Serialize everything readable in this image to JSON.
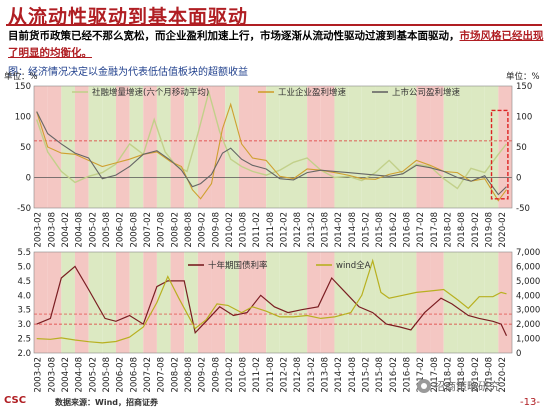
{
  "header": {
    "title": "从流动性驱动到基本面驱动",
    "summary_plain": "目前货币政策已经不那么宽松，而企业盈利加速上行，市场逐渐从流动性驱动过渡到基本面驱动，",
    "summary_highlight": "市场风格已经出现了明显的均衡化。",
    "caption": "图：经济情况决定以金融为代表低估值板块的超额收益"
  },
  "colors": {
    "shade_red": "#f4c7c3",
    "shade_green": "#dce9c2",
    "series_m2": "#c2d08a",
    "series_industrial": "#cfa030",
    "series_listed": "#666666",
    "series_bond": "#7a1e22",
    "series_wind": "#b8b020",
    "ref_line": "#d33",
    "box": "#d22"
  },
  "chart_data": [
    {
      "type": "line",
      "y_unit_left": "单位：%",
      "y_unit_right": "单位：%",
      "ylim_left": [
        -50,
        150
      ],
      "ylim_right": [
        -50,
        150
      ],
      "yticks_left": [
        -50,
        0,
        50,
        100,
        150
      ],
      "yticks_right": [
        -50,
        0,
        50,
        100,
        150
      ],
      "x_tick_labels": [
        "2003-02",
        "2003-08",
        "2004-02",
        "2004-08",
        "2005-02",
        "2005-08",
        "2006-02",
        "2006-08",
        "2007-02",
        "2007-08",
        "2008-02",
        "2008-08",
        "2009-02",
        "2009-08",
        "2010-02",
        "2010-08",
        "2011-02",
        "2011-08",
        "2012-02",
        "2012-08",
        "2013-02",
        "2013-08",
        "2014-02",
        "2014-08",
        "2015-02",
        "2015-08",
        "2016-02",
        "2016-08",
        "2017-02",
        "2017-08",
        "2018-02",
        "2018-08",
        "2019-02",
        "2019-08",
        "2020-02"
      ],
      "regimes": [
        "red",
        "red",
        "green",
        "red",
        "green",
        "green",
        "red",
        "green",
        "red",
        "green",
        "red",
        "green",
        "red",
        "red",
        "green",
        "red",
        "red",
        "green",
        "green",
        "green",
        "red",
        "red",
        "green",
        "green",
        "green",
        "green",
        "green",
        "green",
        "red",
        "red",
        "green",
        "green",
        "green",
        "green",
        "red"
      ],
      "reference_lines": [
        0,
        60
      ],
      "series": [
        {
          "name": "社融增量增速(六个月移动平均)",
          "points": [
            [
              2003.1,
              95
            ],
            [
              2003.5,
              42
            ],
            [
              2004.0,
              10
            ],
            [
              2004.5,
              -8
            ],
            [
              2005.0,
              2
            ],
            [
              2005.5,
              8
            ],
            [
              2006.0,
              22
            ],
            [
              2006.5,
              55
            ],
            [
              2007.0,
              38
            ],
            [
              2007.4,
              95
            ],
            [
              2007.8,
              42
            ],
            [
              2008.2,
              20
            ],
            [
              2008.6,
              10
            ],
            [
              2009.0,
              72
            ],
            [
              2009.4,
              140
            ],
            [
              2009.8,
              75
            ],
            [
              2010.2,
              30
            ],
            [
              2010.6,
              18
            ],
            [
              2011.0,
              10
            ],
            [
              2011.5,
              4
            ],
            [
              2012.0,
              12
            ],
            [
              2012.5,
              25
            ],
            [
              2013.0,
              32
            ],
            [
              2013.5,
              12
            ],
            [
              2014.0,
              0
            ],
            [
              2014.5,
              2
            ],
            [
              2015.0,
              -5
            ],
            [
              2015.5,
              8
            ],
            [
              2016.0,
              28
            ],
            [
              2016.5,
              6
            ],
            [
              2017.0,
              22
            ],
            [
              2017.5,
              18
            ],
            [
              2018.0,
              -2
            ],
            [
              2018.5,
              -18
            ],
            [
              2019.0,
              15
            ],
            [
              2019.5,
              8
            ],
            [
              2020.0,
              38
            ],
            [
              2020.3,
              55
            ]
          ]
        },
        {
          "name": "工业企业盈利增速",
          "points": [
            [
              2003.1,
              108
            ],
            [
              2003.5,
              50
            ],
            [
              2004.0,
              40
            ],
            [
              2004.5,
              38
            ],
            [
              2005.0,
              28
            ],
            [
              2005.5,
              18
            ],
            [
              2006.0,
              24
            ],
            [
              2006.5,
              30
            ],
            [
              2007.0,
              38
            ],
            [
              2007.5,
              42
            ],
            [
              2008.0,
              26
            ],
            [
              2008.4,
              18
            ],
            [
              2008.8,
              -20
            ],
            [
              2009.1,
              -35
            ],
            [
              2009.5,
              -10
            ],
            [
              2009.9,
              80
            ],
            [
              2010.2,
              120
            ],
            [
              2010.6,
              55
            ],
            [
              2011.0,
              32
            ],
            [
              2011.5,
              28
            ],
            [
              2012.0,
              2
            ],
            [
              2012.5,
              -2
            ],
            [
              2013.0,
              14
            ],
            [
              2013.5,
              12
            ],
            [
              2014.0,
              8
            ],
            [
              2014.5,
              4
            ],
            [
              2015.0,
              -2
            ],
            [
              2015.5,
              -3
            ],
            [
              2016.0,
              5
            ],
            [
              2016.5,
              10
            ],
            [
              2017.0,
              28
            ],
            [
              2017.5,
              20
            ],
            [
              2018.0,
              10
            ],
            [
              2018.5,
              8
            ],
            [
              2019.0,
              -6
            ],
            [
              2019.5,
              -2
            ],
            [
              2020.0,
              -38
            ],
            [
              2020.3,
              -20
            ]
          ]
        },
        {
          "name": "上市公司盈利增速",
          "points": [
            [
              2003.1,
              108
            ],
            [
              2003.5,
              72
            ],
            [
              2004.0,
              55
            ],
            [
              2004.5,
              40
            ],
            [
              2005.0,
              32
            ],
            [
              2005.5,
              -2
            ],
            [
              2006.0,
              4
            ],
            [
              2006.5,
              18
            ],
            [
              2007.0,
              38
            ],
            [
              2007.5,
              44
            ],
            [
              2008.0,
              28
            ],
            [
              2008.4,
              12
            ],
            [
              2008.8,
              -15
            ],
            [
              2009.1,
              -10
            ],
            [
              2009.5,
              5
            ],
            [
              2009.9,
              40
            ],
            [
              2010.2,
              48
            ],
            [
              2010.6,
              30
            ],
            [
              2011.0,
              20
            ],
            [
              2011.5,
              14
            ],
            [
              2012.0,
              -2
            ],
            [
              2012.5,
              -4
            ],
            [
              2013.0,
              8
            ],
            [
              2013.5,
              12
            ],
            [
              2014.0,
              10
            ],
            [
              2014.5,
              8
            ],
            [
              2015.0,
              6
            ],
            [
              2015.5,
              4
            ],
            [
              2016.0,
              2
            ],
            [
              2016.5,
              6
            ],
            [
              2017.0,
              20
            ],
            [
              2017.5,
              16
            ],
            [
              2018.0,
              10
            ],
            [
              2018.5,
              0
            ],
            [
              2019.0,
              -6
            ],
            [
              2019.5,
              3
            ],
            [
              2020.0,
              -28
            ],
            [
              2020.3,
              -15
            ]
          ]
        }
      ]
    },
    {
      "type": "line",
      "ylim_left": [
        2.0,
        5.5
      ],
      "ylim_right": [
        0,
        7000
      ],
      "yticks_left": [
        2.0,
        2.5,
        3.0,
        3.5,
        4.0,
        4.5,
        5.0,
        5.5
      ],
      "yticks_right": [
        0,
        1000,
        2000,
        3000,
        4000,
        5000,
        6000,
        7000
      ],
      "right_tick_labels": [
        "0",
        "1,000",
        "2,000",
        "3,000",
        "4,000",
        "5,000",
        "6,000",
        "7,000"
      ],
      "x_tick_labels": [
        "2003-02",
        "2003-08",
        "2004-02",
        "2004-08",
        "2005-02",
        "2005-08",
        "2006-02",
        "2006-08",
        "2007-02",
        "2007-08",
        "2008-02",
        "2008-08",
        "2009-02",
        "2009-08",
        "2010-02",
        "2010-08",
        "2011-02",
        "2011-08",
        "2012-02",
        "2012-08",
        "2013-02",
        "2013-08",
        "2014-02",
        "2014-08",
        "2015-02",
        "2015-08",
        "2016-02",
        "2016-08",
        "2017-02",
        "2017-08",
        "2018-02",
        "2018-08",
        "2019-02",
        "2019-08",
        "2020-02"
      ],
      "reference_lines_left": [
        3.0,
        3.35
      ],
      "series": [
        {
          "name": "十年期国债利率",
          "axis": "left",
          "points": [
            [
              2003.1,
              3.0
            ],
            [
              2003.6,
              3.2
            ],
            [
              2004.0,
              4.6
            ],
            [
              2004.5,
              5.0
            ],
            [
              2005.0,
              4.2
            ],
            [
              2005.6,
              3.2
            ],
            [
              2006.0,
              3.1
            ],
            [
              2006.5,
              3.3
            ],
            [
              2007.0,
              3.0
            ],
            [
              2007.5,
              4.3
            ],
            [
              2007.9,
              4.5
            ],
            [
              2008.5,
              4.5
            ],
            [
              2008.9,
              2.7
            ],
            [
              2009.3,
              3.1
            ],
            [
              2009.8,
              3.6
            ],
            [
              2010.3,
              3.3
            ],
            [
              2010.8,
              3.4
            ],
            [
              2011.3,
              4.0
            ],
            [
              2011.8,
              3.6
            ],
            [
              2012.3,
              3.4
            ],
            [
              2012.8,
              3.5
            ],
            [
              2013.4,
              3.6
            ],
            [
              2013.9,
              4.6
            ],
            [
              2014.4,
              4.1
            ],
            [
              2014.9,
              3.6
            ],
            [
              2015.4,
              3.4
            ],
            [
              2015.9,
              3.0
            ],
            [
              2016.4,
              2.9
            ],
            [
              2016.8,
              2.8
            ],
            [
              2017.3,
              3.4
            ],
            [
              2017.9,
              3.9
            ],
            [
              2018.3,
              3.7
            ],
            [
              2018.9,
              3.3
            ],
            [
              2019.3,
              3.2
            ],
            [
              2019.8,
              3.1
            ],
            [
              2020.1,
              3.0
            ],
            [
              2020.3,
              2.6
            ]
          ]
        },
        {
          "name": "wind全A",
          "axis": "right",
          "points": [
            [
              2003.1,
              1000
            ],
            [
              2003.6,
              950
            ],
            [
              2004.0,
              1050
            ],
            [
              2004.5,
              900
            ],
            [
              2005.0,
              780
            ],
            [
              2005.5,
              700
            ],
            [
              2006.0,
              800
            ],
            [
              2006.5,
              1100
            ],
            [
              2007.0,
              1800
            ],
            [
              2007.5,
              3500
            ],
            [
              2007.9,
              5300
            ],
            [
              2008.3,
              3800
            ],
            [
              2008.9,
              1700
            ],
            [
              2009.3,
              2300
            ],
            [
              2009.7,
              3400
            ],
            [
              2010.1,
              3300
            ],
            [
              2010.6,
              2800
            ],
            [
              2011.0,
              3200
            ],
            [
              2011.5,
              2900
            ],
            [
              2012.0,
              2500
            ],
            [
              2012.5,
              2500
            ],
            [
              2013.0,
              2600
            ],
            [
              2013.5,
              2400
            ],
            [
              2014.0,
              2500
            ],
            [
              2014.6,
              2800
            ],
            [
              2015.0,
              4000
            ],
            [
              2015.4,
              6400
            ],
            [
              2015.7,
              4200
            ],
            [
              2016.0,
              3800
            ],
            [
              2016.5,
              4000
            ],
            [
              2017.0,
              4200
            ],
            [
              2017.5,
              4300
            ],
            [
              2018.0,
              4400
            ],
            [
              2018.5,
              3700
            ],
            [
              2018.9,
              3100
            ],
            [
              2019.3,
              3900
            ],
            [
              2019.8,
              3900
            ],
            [
              2020.1,
              4200
            ],
            [
              2020.3,
              4100
            ]
          ]
        }
      ]
    }
  ],
  "footer": {
    "logo": "CSC",
    "source": "数据来源：Wind，招商证券",
    "watermark": "招商策略研究",
    "page": "-13-"
  }
}
